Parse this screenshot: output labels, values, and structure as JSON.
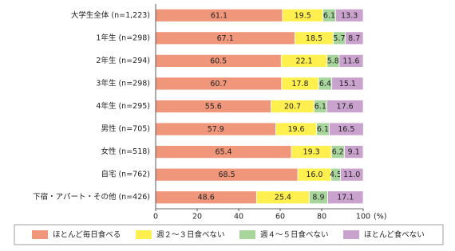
{
  "chart_data": {
    "type": "stacked-bar-horizontal",
    "categories": [
      "大学生全体 (n=1,223)",
      "1年生 (n=298)",
      "2年生 (n=294)",
      "3年生 (n=298)",
      "4年生 (n=295)",
      "男性 (n=705)",
      "女性 (n=518)",
      "自宅 (n=762)",
      "下宿・アパート・その他 (n=426)"
    ],
    "series": [
      {
        "name": "ほとんど毎日食べる",
        "color": "#f0967b",
        "values": [
          61.1,
          67.1,
          60.5,
          60.7,
          55.6,
          57.9,
          65.4,
          68.5,
          48.6
        ],
        "value_labels": [
          "61.1",
          "67.1",
          "60.5",
          "60.7",
          "55.6",
          "57.9",
          "65.4",
          "68.5",
          "48.6"
        ]
      },
      {
        "name": "週２～３日食べない",
        "color": "#fff050",
        "values": [
          19.5,
          18.5,
          22.1,
          17.8,
          20.7,
          19.6,
          19.3,
          16.0,
          25.4
        ],
        "value_labels": [
          "19.5",
          "18.5",
          "22.1",
          "17.8",
          "20.7",
          "19.6",
          "19.3",
          "16.0",
          "25.4"
        ]
      },
      {
        "name": "週４～５日食べない",
        "color": "#a8d59c",
        "values": [
          6.1,
          5.7,
          5.8,
          6.4,
          6.1,
          6.1,
          6.2,
          4.5,
          8.9
        ],
        "value_labels": [
          "6.1",
          "5.7",
          "5.8",
          "6.4",
          "6.1",
          "6.1",
          "6.2",
          "4.5",
          "8.9"
        ]
      },
      {
        "name": "ほとんど食べない",
        "color": "#c9a2cd",
        "values": [
          13.3,
          8.7,
          11.6,
          15.1,
          17.6,
          16.5,
          9.1,
          11.0,
          17.1
        ],
        "value_labels": [
          "13.3",
          "8.7",
          "11.6",
          "15.1",
          "17.6",
          "16.5",
          "9.1",
          "11.0",
          "17.1"
        ]
      }
    ],
    "xlim": [
      0,
      100
    ],
    "xticks": [
      0,
      20,
      40,
      60,
      80,
      100
    ],
    "x_unit": "(%)",
    "legend": "bottom"
  }
}
